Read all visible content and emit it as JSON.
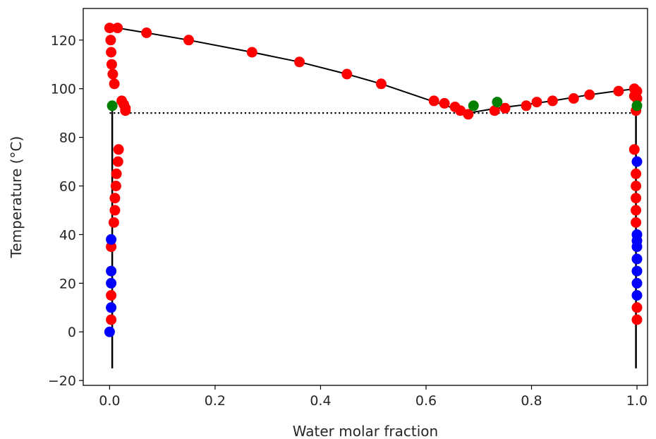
{
  "chart_data": {
    "type": "scatter",
    "title": "",
    "xlabel": "Water molar fraction",
    "ylabel": "Temperature (°C)",
    "xlim": [
      -0.05,
      1.02
    ],
    "ylim": [
      -22,
      133
    ],
    "xticks": [
      0.0,
      0.2,
      0.4,
      0.6,
      0.8,
      1.0
    ],
    "xtick_labels": [
      "0.0",
      "0.2",
      "0.4",
      "0.6",
      "0.8",
      "1.0"
    ],
    "yticks": [
      -20,
      0,
      20,
      40,
      60,
      80,
      100,
      120
    ],
    "ytick_labels": [
      "−20",
      "0",
      "20",
      "40",
      "60",
      "80",
      "100",
      "120"
    ],
    "grid": false,
    "legend": "none",
    "colors": {
      "red": "#ff0000",
      "blue": "#0000ff",
      "green": "#008000",
      "line": "#000000"
    },
    "lines": [
      {
        "style": "solid",
        "width": 2.5,
        "points": [
          [
            0.005,
            -15
          ],
          [
            0.005,
            93
          ]
        ]
      },
      {
        "style": "solid",
        "width": 2.5,
        "points": [
          [
            0.998,
            -15
          ],
          [
            0.998,
            93
          ]
        ]
      },
      {
        "style": "solid",
        "width": 2,
        "points": [
          [
            0.0,
            125
          ],
          [
            0.015,
            125
          ],
          [
            0.07,
            123
          ],
          [
            0.15,
            120
          ],
          [
            0.27,
            115
          ],
          [
            0.36,
            111
          ],
          [
            0.45,
            106
          ],
          [
            0.515,
            102
          ],
          [
            0.61,
            95
          ],
          [
            0.68,
            90
          ],
          [
            0.735,
            92
          ],
          [
            0.79,
            93.5
          ],
          [
            0.84,
            95
          ],
          [
            0.91,
            97.5
          ],
          [
            0.96,
            99
          ],
          [
            1.0,
            100
          ]
        ]
      },
      {
        "style": "dotted",
        "width": 2.2,
        "points": [
          [
            0.0,
            90
          ],
          [
            1.0,
            90
          ]
        ]
      }
    ],
    "series": [
      {
        "color": "red",
        "points": [
          [
            0.0,
            125
          ],
          [
            0.015,
            125
          ],
          [
            0.07,
            123
          ],
          [
            0.15,
            120
          ],
          [
            0.27,
            115
          ],
          [
            0.36,
            111
          ],
          [
            0.45,
            106
          ],
          [
            0.515,
            102
          ],
          [
            0.615,
            95
          ],
          [
            0.635,
            94
          ],
          [
            0.655,
            92.5
          ],
          [
            0.665,
            91
          ],
          [
            0.68,
            89.5
          ],
          [
            0.73,
            91
          ],
          [
            0.75,
            92
          ],
          [
            0.79,
            93
          ],
          [
            0.81,
            94.5
          ],
          [
            0.84,
            95
          ],
          [
            0.88,
            96
          ],
          [
            0.91,
            97.5
          ],
          [
            0.965,
            99
          ],
          [
            0.995,
            100
          ],
          [
            1.0,
            99
          ],
          [
            0.995,
            97
          ],
          [
            1.0,
            96
          ],
          [
            0.998,
            91
          ],
          [
            0.002,
            120
          ],
          [
            0.003,
            115
          ],
          [
            0.004,
            110
          ],
          [
            0.006,
            106
          ],
          [
            0.009,
            102
          ],
          [
            0.023,
            95
          ],
          [
            0.027,
            93.5
          ],
          [
            0.03,
            92
          ],
          [
            0.03,
            91
          ],
          [
            0.017,
            75
          ],
          [
            0.016,
            70
          ],
          [
            0.013,
            65
          ],
          [
            0.012,
            60
          ],
          [
            0.01,
            55
          ],
          [
            0.01,
            50
          ],
          [
            0.008,
            45
          ],
          [
            0.003,
            35
          ],
          [
            0.003,
            15
          ],
          [
            0.003,
            5
          ],
          [
            0.995,
            75
          ],
          [
            0.998,
            65
          ],
          [
            0.998,
            60
          ],
          [
            0.998,
            55
          ],
          [
            0.998,
            50
          ],
          [
            0.998,
            45
          ],
          [
            1.0,
            10
          ],
          [
            1.0,
            5
          ]
        ]
      },
      {
        "color": "blue",
        "points": [
          [
            0.0,
            0
          ],
          [
            0.003,
            10
          ],
          [
            0.003,
            20
          ],
          [
            0.003,
            25
          ],
          [
            0.003,
            38
          ],
          [
            1.0,
            70
          ],
          [
            1.0,
            40
          ],
          [
            1.0,
            37.5
          ],
          [
            1.0,
            35
          ],
          [
            1.0,
            30
          ],
          [
            1.0,
            25
          ],
          [
            1.0,
            20
          ],
          [
            1.0,
            15
          ]
        ]
      },
      {
        "color": "green",
        "points": [
          [
            0.005,
            93
          ],
          [
            0.69,
            93
          ],
          [
            0.735,
            94.5
          ],
          [
            1.0,
            93
          ]
        ]
      }
    ]
  }
}
